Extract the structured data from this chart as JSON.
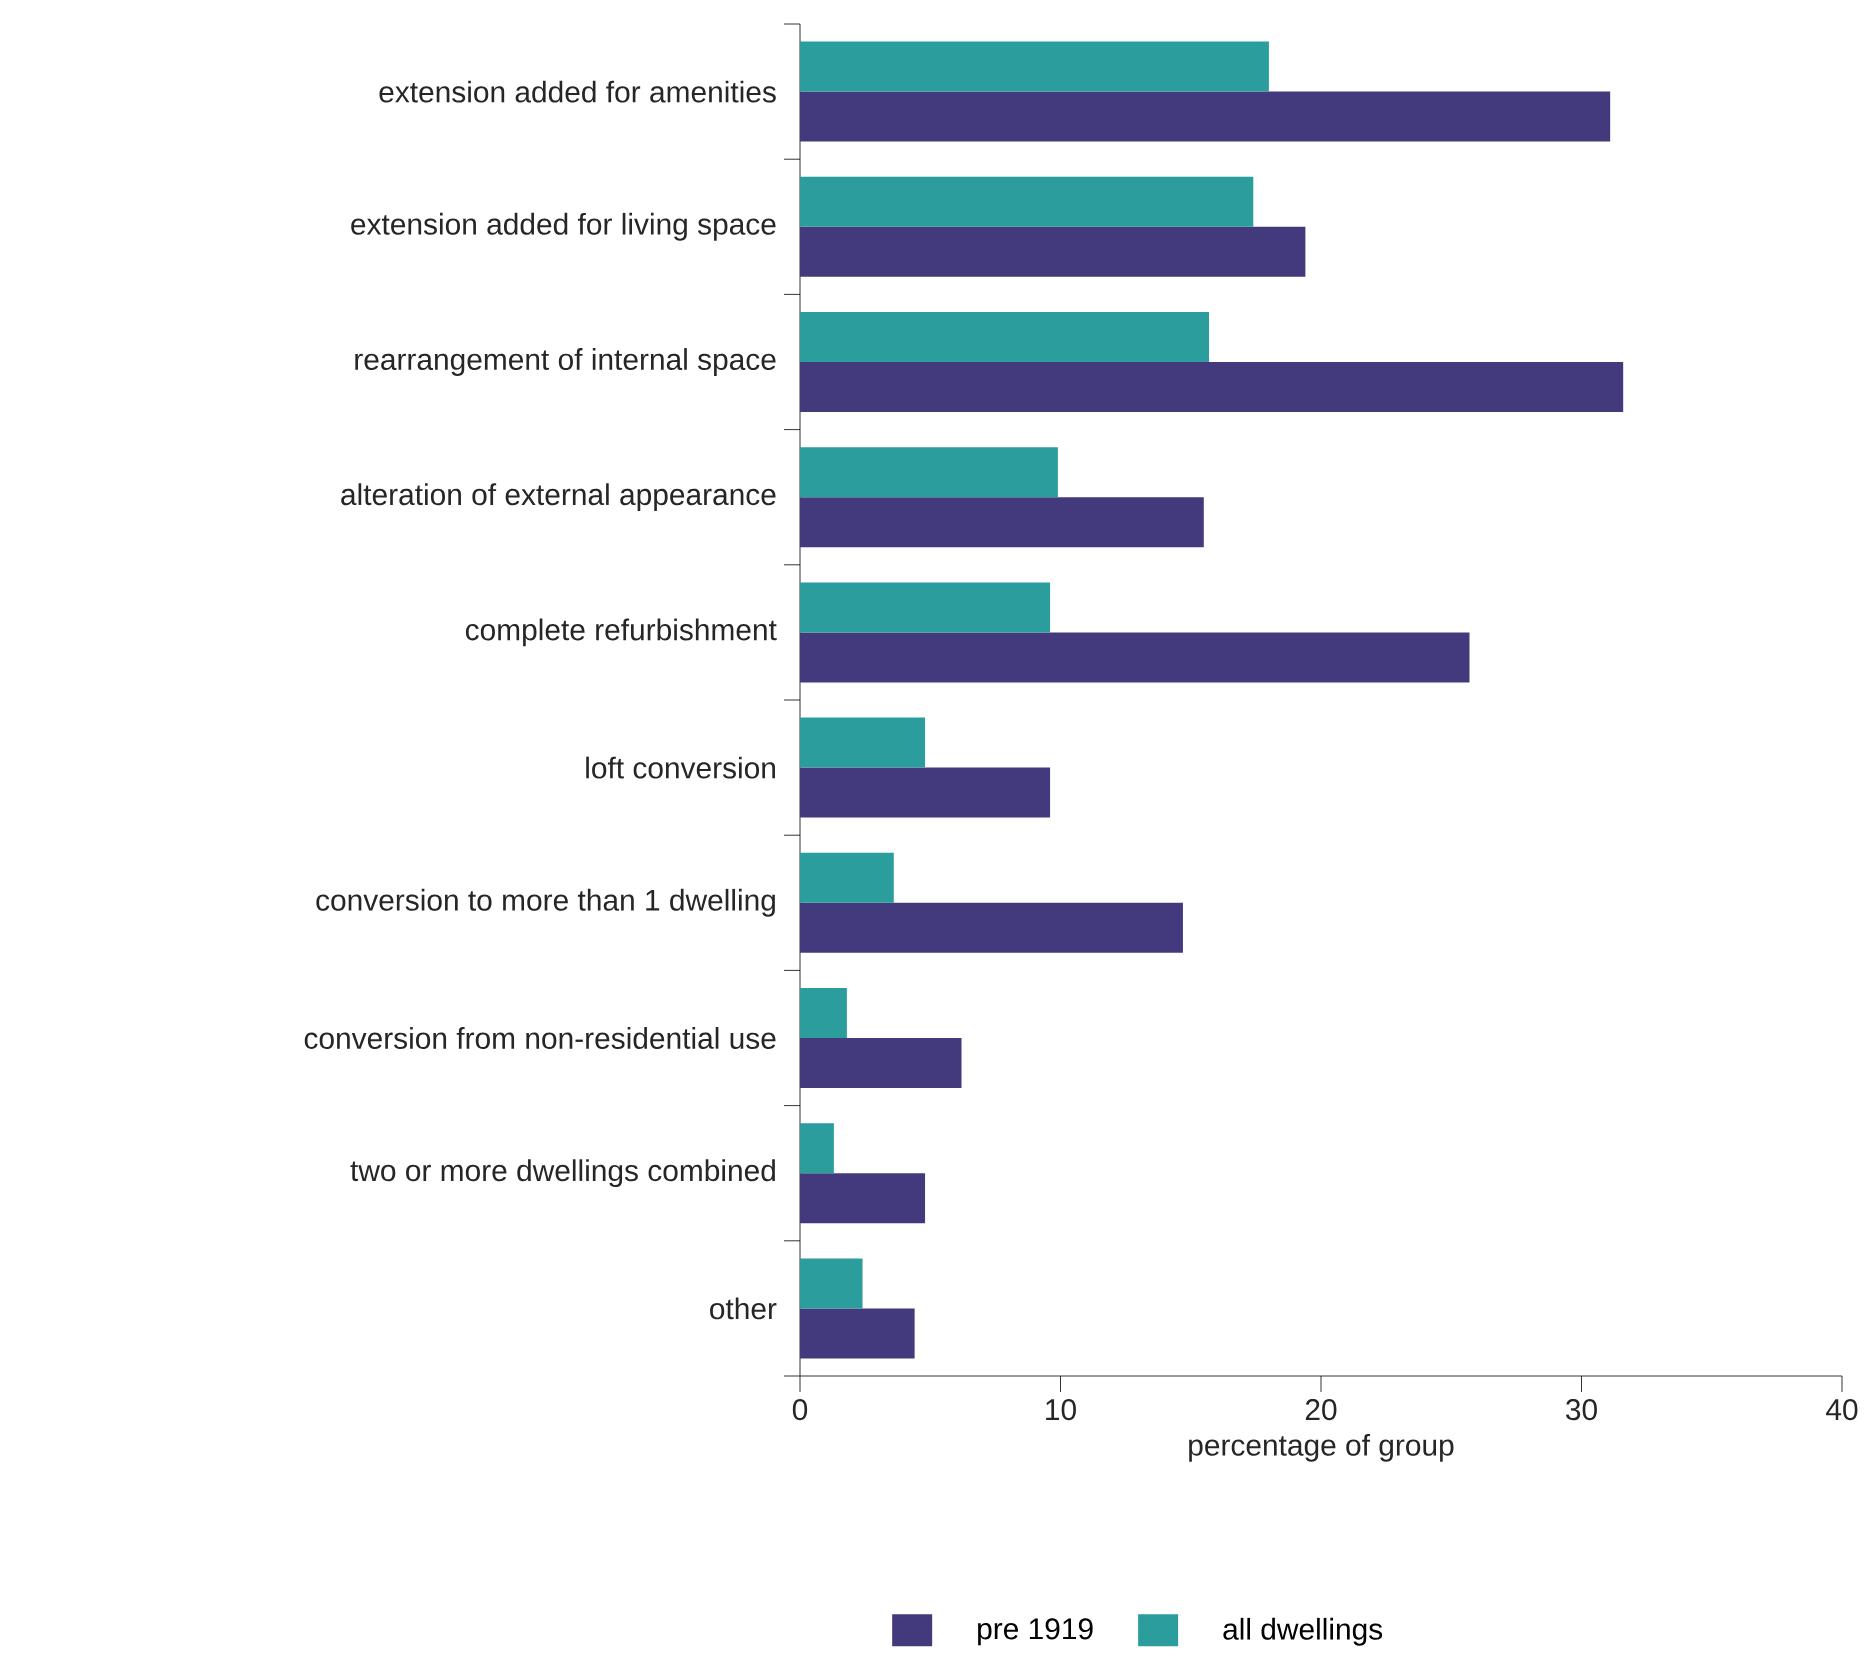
{
  "chart_data": {
    "type": "bar",
    "orientation": "horizontal",
    "xlabel": "percentage of group",
    "categories": [
      "extension added for amenities",
      "extension added for living space",
      "rearrangement of internal space",
      "alteration of external appearance",
      "complete refurbishment",
      "loft conversion",
      "conversion to more than 1 dwelling",
      "conversion from non-residential use",
      "two or more dwellings combined",
      "other"
    ],
    "series": [
      {
        "name": "pre 1919",
        "color": "#433a7e",
        "values": [
          31.1,
          19.4,
          31.6,
          15.5,
          25.7,
          9.6,
          14.7,
          6.2,
          4.8,
          4.4
        ]
      },
      {
        "name": "all dwellings",
        "color": "#2a9d9c",
        "values": [
          18.0,
          17.4,
          15.7,
          9.9,
          9.6,
          4.8,
          3.6,
          1.8,
          1.3,
          2.4
        ]
      }
    ],
    "xlim": [
      0,
      40
    ],
    "xticks": [
      0,
      10,
      20,
      30,
      40
    ],
    "legend": "bottom"
  }
}
